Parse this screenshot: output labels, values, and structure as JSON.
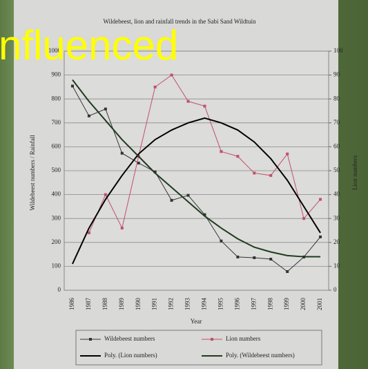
{
  "overlay_text": "nfluenced",
  "chart_data": {
    "type": "line",
    "title": "Wildebeest, lion and rainfall trends in the Sabi Sand Wildtuin",
    "xlabel": "Year",
    "ylabel": "Wildebeest numbers / Rainfall",
    "y2label": "Lion numbers",
    "categories": [
      "1986",
      "1987",
      "1988",
      "1989",
      "1990",
      "1991",
      "1992",
      "1993",
      "1994",
      "1995",
      "1996",
      "1997",
      "1998",
      "1999",
      "2000",
      "2001"
    ],
    "ylim": [
      0,
      1000
    ],
    "yticks": [
      0,
      100,
      200,
      300,
      400,
      500,
      600,
      700,
      800,
      900,
      1000
    ],
    "y2lim": [
      0,
      100
    ],
    "y2ticks": [
      0,
      10,
      20,
      30,
      40,
      50,
      60,
      70,
      80,
      90,
      100
    ],
    "grid": true,
    "series": [
      {
        "name": "Wildebeest numbers",
        "color": "#333333",
        "markers": true,
        "values": [
          854,
          729,
          758,
          573,
          532,
          495,
          376,
          397,
          316,
          206,
          139,
          136,
          130,
          78,
          139,
          223
        ]
      },
      {
        "name": "Lion numbers",
        "color": "#c0506a",
        "markers": true,
        "axis": "y2",
        "values": [
          null,
          24,
          40,
          26,
          56,
          85,
          90,
          79,
          77,
          58,
          56,
          49,
          48,
          57,
          30,
          38
        ]
      },
      {
        "name": "Poly. (Lion numbers)",
        "color": "#000000",
        "markers": false,
        "axis": "y2",
        "values": [
          11,
          26,
          38,
          48,
          57,
          63,
          67,
          70,
          72,
          70,
          67,
          62,
          55,
          46,
          35,
          24
        ]
      },
      {
        "name": "Poly. (Wildebeest numbers)",
        "color": "#1e3a1e",
        "markers": false,
        "values": [
          880,
          790,
          710,
          630,
          560,
          490,
          430,
          370,
          310,
          260,
          215,
          180,
          160,
          145,
          140,
          140
        ]
      }
    ]
  }
}
